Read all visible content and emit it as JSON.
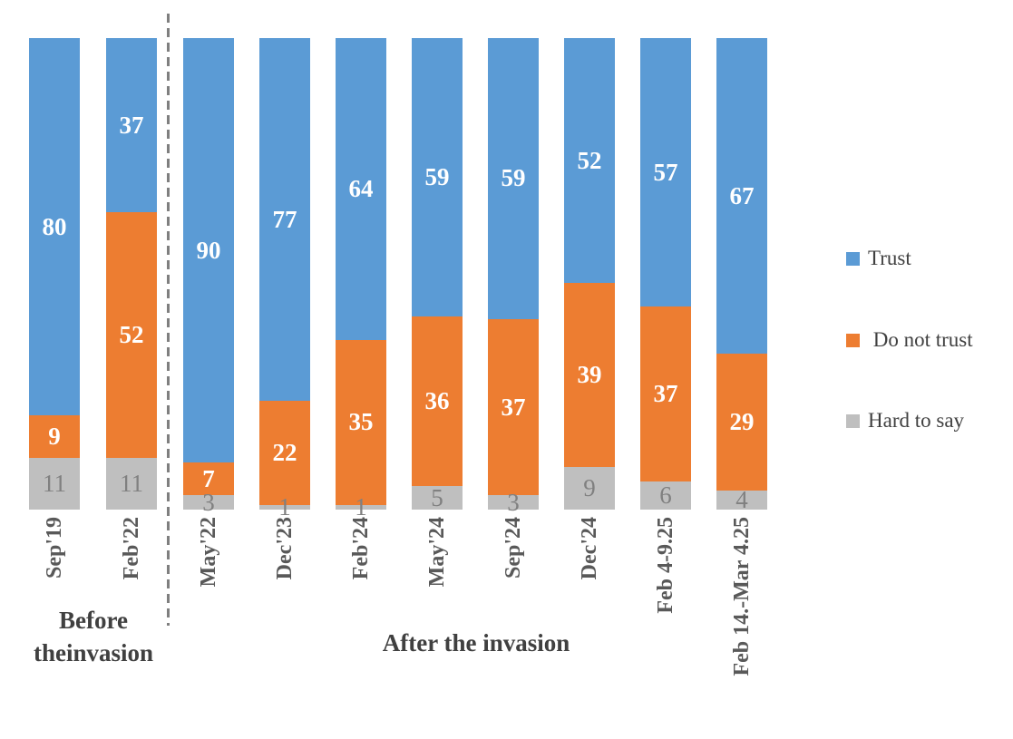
{
  "chart_data": {
    "type": "bar",
    "variant": "stacked-100-percent",
    "title": "",
    "xlabel": "",
    "ylabel": "",
    "ylim": [
      0,
      100
    ],
    "grid": false,
    "categories": [
      "Sep'19",
      "Feb'22",
      "May'22",
      "Dec'23",
      "Feb'24",
      "May'24",
      "Sep'24",
      "Dec'24",
      "Feb 4-9.25",
      "Feb 14.-Mar 4.25"
    ],
    "series": [
      {
        "name": "Trust",
        "color": "#5B9BD5",
        "label_color": "#FFFFFF",
        "values": [
          80,
          37,
          90,
          77,
          64,
          59,
          59,
          52,
          57,
          67
        ]
      },
      {
        "name": "Do not trust",
        "color": "#ED7D31",
        "label_color": "#FFFFFF",
        "values": [
          9,
          52,
          7,
          22,
          35,
          36,
          37,
          39,
          37,
          29
        ]
      },
      {
        "name": "Hard to say",
        "color": "#BFBFBF",
        "label_color": "#808080",
        "values": [
          11,
          11,
          3,
          1,
          1,
          5,
          3,
          9,
          6,
          4
        ]
      }
    ],
    "group_labels": {
      "before_line1": "Before",
      "before_line2": "theinvasion",
      "after": "After the invasion"
    },
    "divider": {
      "style": "dashed",
      "color": "#7F7F7F",
      "between": [
        "Feb'22",
        "May'22"
      ]
    },
    "legend": {
      "position": "right",
      "entries": [
        {
          "label": "Trust",
          "color": "#5B9BD5"
        },
        {
          "label": " Do not trust",
          "color": "#ED7D31"
        },
        {
          "label": "Hard to say",
          "color": "#BFBFBF"
        }
      ]
    }
  }
}
